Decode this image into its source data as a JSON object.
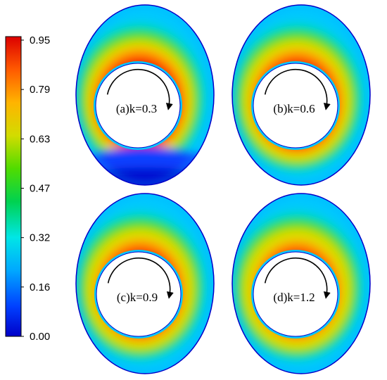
{
  "colorbar": {
    "ticks": [
      "0.95",
      "0.79",
      "0.63",
      "0.47",
      "0.32",
      "0.16",
      "0.00"
    ],
    "colors": [
      "#0000cc",
      "#0050ff",
      "#00b4ff",
      "#00e6c8",
      "#00d23c",
      "#64dc00",
      "#dcdc00",
      "#ffb400",
      "#ff5000",
      "#e60000"
    ]
  },
  "panels": [
    {
      "label": "(a)k=0.3",
      "peak": 1.0,
      "bottom_blue": true
    },
    {
      "label": "(b)k=0.6",
      "peak": 0.94,
      "bottom_blue": false
    },
    {
      "label": "(c)k=0.9",
      "peak": 0.9,
      "bottom_blue": false
    },
    {
      "label": "(d)k=1.2",
      "peak": 0.86,
      "bottom_blue": false
    }
  ],
  "rotation_arrow": "clockwise-arrow-icon"
}
